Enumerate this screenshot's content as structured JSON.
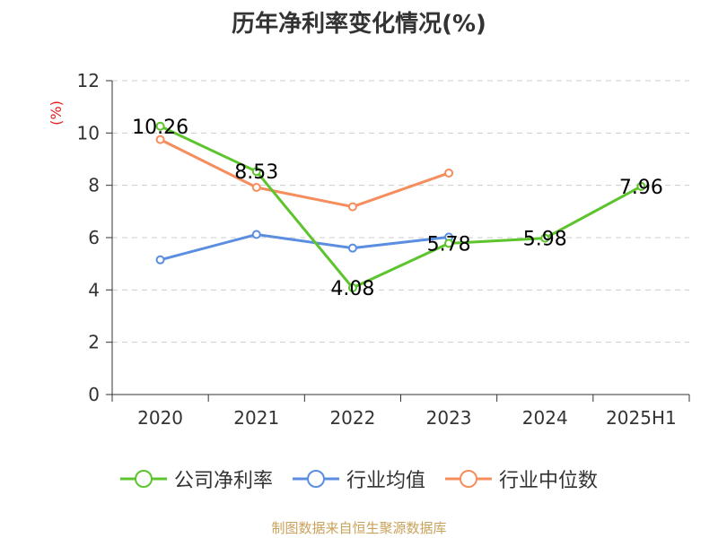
{
  "chart_data": {
    "type": "line",
    "title": "历年净利率变化情况(%)",
    "ylabel": "(%)",
    "categories": [
      "2020",
      "2021",
      "2022",
      "2023",
      "2024",
      "2025H1"
    ],
    "ylim": [
      0,
      12
    ],
    "yticks": [
      0,
      2,
      4,
      6,
      8,
      10,
      12
    ],
    "grid": true,
    "legend_position": "bottom",
    "series": [
      {
        "name": "公司净利率",
        "color": "#5dc42d",
        "values": [
          10.26,
          8.53,
          4.08,
          5.78,
          5.98,
          7.96
        ],
        "labels": [
          "10.26",
          "8.53",
          "4.08",
          "5.78",
          "5.98",
          "7.96"
        ]
      },
      {
        "name": "行业均值",
        "color": "#5b8ee0",
        "values": [
          5.15,
          6.12,
          5.6,
          6.02,
          null,
          null
        ]
      },
      {
        "name": "行业中位数",
        "color": "#f58d5c",
        "values": [
          9.75,
          7.92,
          7.18,
          8.47,
          null,
          null
        ]
      }
    ]
  },
  "source": "制图数据来自恒生聚源数据库"
}
